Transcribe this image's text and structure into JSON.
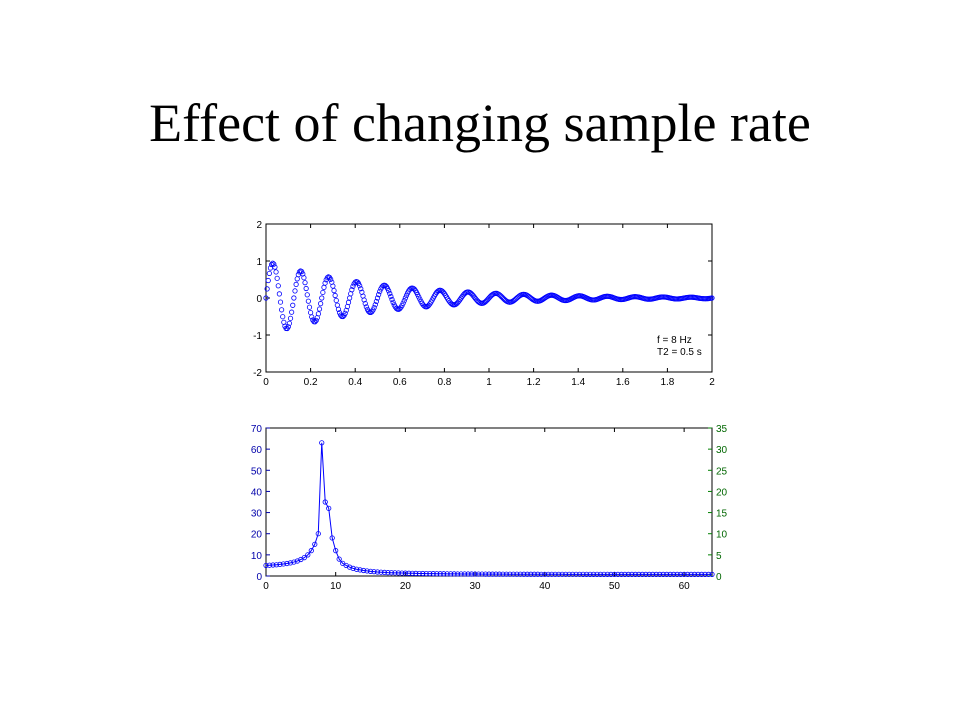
{
  "slide": {
    "title": "Effect of changing sample rate"
  },
  "colors": {
    "series": "#0000ff",
    "right_axis": "#008000",
    "left_axis": "#0000aa",
    "frame": "#000000"
  },
  "chart_data": [
    {
      "type": "scatter",
      "xlim": [
        0,
        2
      ],
      "ylim": [
        -2,
        2
      ],
      "x_ticks": [
        0,
        0.2,
        0.4,
        0.6,
        0.8,
        1,
        1.2,
        1.4,
        1.6,
        1.8,
        2
      ],
      "x_tick_labels": [
        "0",
        "0.2",
        "0.4",
        "0.6",
        "0.8",
        "1",
        "1.2",
        "1.4",
        "1.6",
        "1.8",
        "2"
      ],
      "y_ticks": [
        -2,
        -1,
        0,
        1,
        2
      ],
      "y_tick_labels": [
        "-2",
        "-1",
        "0",
        "1",
        "2"
      ],
      "series": [
        {
          "marker": "circle",
          "function": "exp(-t/0.5)*sin(2*pi*8*t)",
          "x_start": 0,
          "x_end": 2,
          "x_step": 0.005
        }
      ],
      "annotations": [
        "f = 8 Hz",
        "T2 = 0.5 s"
      ],
      "grid": false
    },
    {
      "type": "line",
      "xlim": [
        0,
        64
      ],
      "ylim": [
        0,
        70
      ],
      "y2lim": [
        0,
        35
      ],
      "x_ticks": [
        0,
        10,
        20,
        30,
        40,
        50,
        60
      ],
      "x_tick_labels": [
        "0",
        "10",
        "20",
        "30",
        "40",
        "50",
        "60"
      ],
      "y_ticks": [
        0,
        10,
        20,
        30,
        40,
        50,
        60,
        70
      ],
      "y_tick_labels": [
        "0",
        "10",
        "20",
        "30",
        "40",
        "50",
        "60",
        "70"
      ],
      "y2_ticks": [
        0,
        5,
        10,
        15,
        20,
        25,
        30,
        35
      ],
      "y2_tick_labels": [
        "0",
        "5",
        "10",
        "15",
        "20",
        "25",
        "30",
        "35"
      ],
      "series": [
        {
          "marker": "circle",
          "x": [
            0,
            0.5,
            1,
            1.5,
            2,
            2.5,
            3,
            3.5,
            4,
            4.5,
            5,
            5.5,
            6,
            6.5,
            7,
            7.5,
            8,
            8.5,
            9,
            9.5,
            10,
            10.5,
            11,
            11.5,
            12,
            12.5,
            13,
            13.5,
            14,
            14.5,
            15,
            15.5,
            16,
            16.5,
            17,
            17.5,
            18,
            18.5,
            19,
            19.5,
            20,
            20.5,
            21,
            21.5,
            22,
            22.5,
            23,
            23.5,
            24,
            24.5,
            25,
            25.5,
            26,
            26.5,
            27,
            27.5,
            28,
            28.5,
            29,
            29.5,
            30,
            30.5,
            31,
            31.5,
            32,
            32.5,
            33,
            33.5,
            34,
            34.5,
            35,
            35.5,
            36,
            36.5,
            37,
            37.5,
            38,
            38.5,
            39,
            39.5,
            40,
            40.5,
            41,
            41.5,
            42,
            42.5,
            43,
            43.5,
            44,
            44.5,
            45,
            45.5,
            46,
            46.5,
            47,
            47.5,
            48,
            48.5,
            49,
            49.5,
            50,
            50.5,
            51,
            51.5,
            52,
            52.5,
            53,
            53.5,
            54,
            54.5,
            55,
            55.5,
            56,
            56.5,
            57,
            57.5,
            58,
            58.5,
            59,
            59.5,
            60,
            60.5,
            61,
            61.5,
            62,
            62.5,
            63,
            63.5,
            64
          ],
          "y": [
            5.0,
            5.1,
            5.2,
            5.3,
            5.5,
            5.7,
            5.9,
            6.2,
            6.6,
            7.1,
            7.8,
            8.7,
            10.0,
            12.0,
            15.0,
            20.0,
            63.0,
            35.0,
            32.0,
            18.0,
            12.0,
            8.0,
            6.0,
            5.0,
            4.2,
            3.6,
            3.2,
            2.9,
            2.6,
            2.4,
            2.2,
            2.05,
            1.9,
            1.8,
            1.7,
            1.6,
            1.55,
            1.5,
            1.45,
            1.4,
            1.35,
            1.3,
            1.27,
            1.24,
            1.21,
            1.18,
            1.15,
            1.13,
            1.11,
            1.09,
            1.07,
            1.05,
            1.03,
            1.01,
            1.0,
            0.98,
            0.97,
            0.96,
            0.95,
            0.94,
            0.93,
            0.92,
            0.91,
            0.9,
            0.89,
            0.88,
            0.88,
            0.87,
            0.86,
            0.86,
            0.85,
            0.85,
            0.84,
            0.84,
            0.83,
            0.83,
            0.82,
            0.82,
            0.82,
            0.81,
            0.81,
            0.81,
            0.8,
            0.8,
            0.8,
            0.8,
            0.79,
            0.79,
            0.79,
            0.79,
            0.79,
            0.78,
            0.78,
            0.78,
            0.78,
            0.78,
            0.78,
            0.78,
            0.78,
            0.77,
            0.77,
            0.77,
            0.77,
            0.77,
            0.77,
            0.77,
            0.77,
            0.77,
            0.77,
            0.77,
            0.77,
            0.77,
            0.77,
            0.77,
            0.77,
            0.77,
            0.77,
            0.77,
            0.77,
            0.77,
            0.77,
            0.77,
            0.77,
            0.77,
            0.77,
            0.77,
            0.77,
            0.77,
            0.77
          ]
        }
      ],
      "grid": false
    }
  ]
}
